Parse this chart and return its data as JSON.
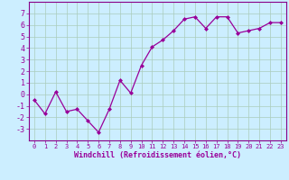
{
  "x": [
    0,
    1,
    2,
    3,
    4,
    5,
    6,
    7,
    8,
    9,
    10,
    11,
    12,
    13,
    14,
    15,
    16,
    17,
    18,
    19,
    20,
    21,
    22,
    23
  ],
  "y": [
    -0.5,
    -1.7,
    0.2,
    -1.5,
    -1.3,
    -2.3,
    -3.3,
    -1.3,
    1.2,
    0.1,
    2.5,
    4.1,
    4.7,
    5.5,
    6.5,
    6.7,
    5.7,
    6.7,
    6.7,
    5.3,
    5.5,
    5.7,
    6.2,
    6.2
  ],
  "line_color": "#990099",
  "marker": "D",
  "marker_size": 2,
  "bg_color": "#cceeff",
  "grid_color": "#aaccbb",
  "xlabel": "Windchill (Refroidissement éolien,°C)",
  "xlabel_color": "#990099",
  "tick_color": "#990099",
  "xlim": [
    -0.5,
    23.5
  ],
  "ylim": [
    -4,
    8
  ],
  "yticks": [
    -3,
    -2,
    -1,
    0,
    1,
    2,
    3,
    4,
    5,
    6,
    7
  ],
  "xticks": [
    0,
    1,
    2,
    3,
    4,
    5,
    6,
    7,
    8,
    9,
    10,
    11,
    12,
    13,
    14,
    15,
    16,
    17,
    18,
    19,
    20,
    21,
    22,
    23
  ],
  "xtick_labels": [
    "0",
    "1",
    "2",
    "3",
    "4",
    "5",
    "6",
    "7",
    "8",
    "9",
    "10",
    "11",
    "12",
    "13",
    "14",
    "15",
    "16",
    "17",
    "18",
    "19",
    "20",
    "21",
    "22",
    "23"
  ],
  "border_color": "#880088",
  "xlabel_fontsize": 6.0,
  "xtick_fontsize": 5.0,
  "ytick_fontsize": 6.0
}
